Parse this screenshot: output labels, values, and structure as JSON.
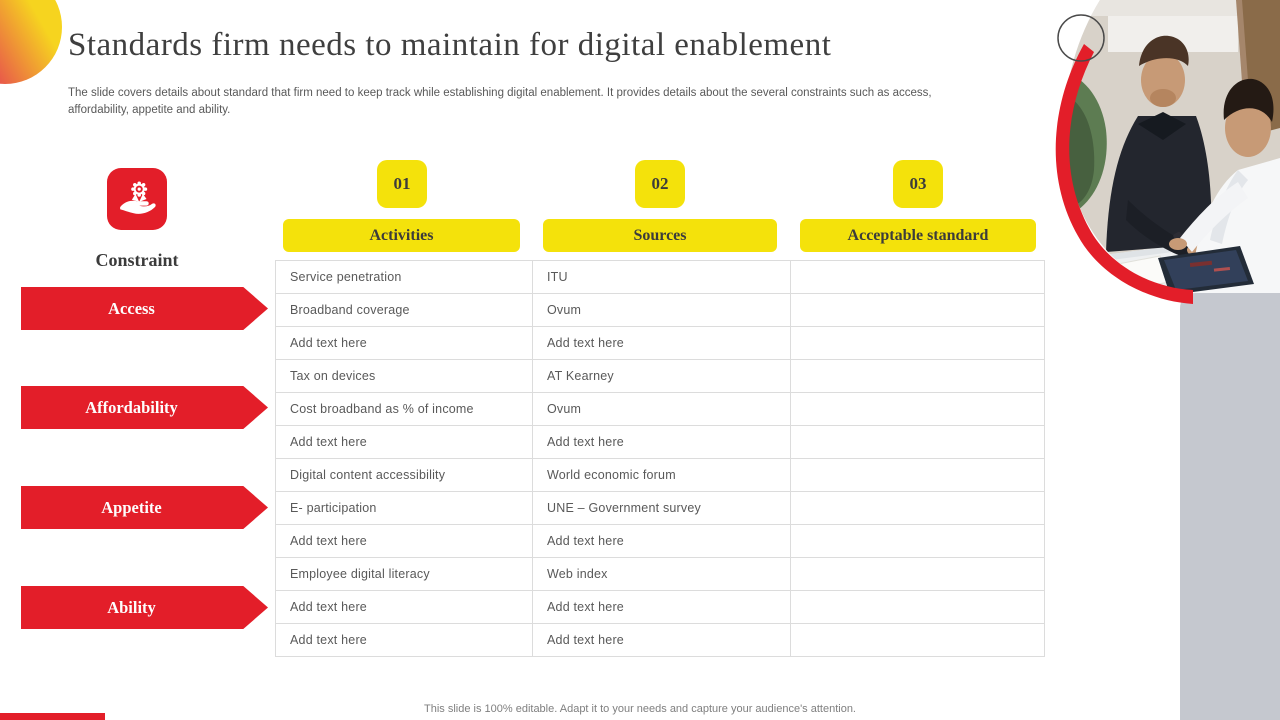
{
  "slide": {
    "title": "Standards firm needs to maintain for digital enablement",
    "subtitle": "The slide covers details about standard that firm need to keep track while establishing digital enablement. It provides details about the several constraints such as access, affordability, appetite and ability.",
    "footer": "This slide is 100% editable. Adapt it to your needs and capture your audience's attention."
  },
  "constraint_panel": {
    "icon": "award-in-hand-icon",
    "label": "Constraint",
    "items": [
      "Access",
      "Affordability",
      "Appetite",
      "Ability"
    ]
  },
  "columns": [
    {
      "number": "01",
      "header": "Activities"
    },
    {
      "number": "02",
      "header": "Sources"
    },
    {
      "number": "03",
      "header": "Acceptable standard"
    }
  ],
  "table": {
    "rows": [
      {
        "activity": "Service penetration",
        "source": "ITU",
        "standard": ""
      },
      {
        "activity": "Broadband coverage",
        "source": "Ovum",
        "standard": ""
      },
      {
        "activity": "Add text here",
        "source": "Add text here",
        "standard": ""
      },
      {
        "activity": "Tax on devices",
        "source": "AT Kearney",
        "standard": ""
      },
      {
        "activity": "Cost broadband as % of income",
        "source": "Ovum",
        "standard": ""
      },
      {
        "activity": "Add text here",
        "source": "Add text here",
        "standard": ""
      },
      {
        "activity": "Digital content accessibility",
        "source": "World economic forum",
        "standard": ""
      },
      {
        "activity": "E- participation",
        "source": "UNE – Government survey",
        "standard": ""
      },
      {
        "activity": "Add text here",
        "source": "Add text here",
        "standard": ""
      },
      {
        "activity": "Employee digital literacy",
        "source": "Web index",
        "standard": ""
      },
      {
        "activity": "Add text here",
        "source": "Add text here",
        "standard": ""
      },
      {
        "activity": "Add text here",
        "source": "Add text here",
        "standard": ""
      }
    ]
  },
  "colors": {
    "accent_red": "#e31e29",
    "accent_yellow": "#f4e20b",
    "text_dark": "#3f3f3f",
    "text_body": "#595959",
    "panel_gray": "#c5c8cf"
  }
}
